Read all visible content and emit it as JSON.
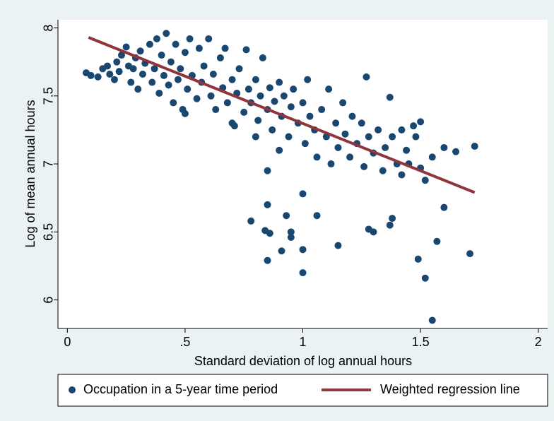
{
  "chart_data": {
    "type": "scatter",
    "xlabel": "Standard deviation of log annual hours",
    "ylabel": "Log of mean annual hours",
    "xlim": [
      -0.04,
      2.04
    ],
    "ylim": [
      5.79,
      8.06
    ],
    "xticks": [
      0,
      {
        "value": 0.5,
        "label": ".5"
      },
      1,
      1.5,
      2
    ],
    "yticks": [
      6,
      6.5,
      7,
      7.5,
      8
    ],
    "series": [
      {
        "name": "Occupation in a 5-year time period",
        "color": "#1a476f",
        "x": [
          0.08,
          0.1,
          0.13,
          0.15,
          0.17,
          0.18,
          0.2,
          0.21,
          0.22,
          0.23,
          0.25,
          0.26,
          0.27,
          0.28,
          0.29,
          0.3,
          0.31,
          0.32,
          0.33,
          0.35,
          0.36,
          0.37,
          0.38,
          0.39,
          0.4,
          0.41,
          0.42,
          0.43,
          0.44,
          0.45,
          0.46,
          0.47,
          0.48,
          0.49,
          0.5,
          0.51,
          0.52,
          0.53,
          0.55,
          0.56,
          0.57,
          0.58,
          0.6,
          0.61,
          0.62,
          0.63,
          0.65,
          0.66,
          0.67,
          0.68,
          0.7,
          0.71,
          0.72,
          0.73,
          0.75,
          0.76,
          0.77,
          0.78,
          0.8,
          0.81,
          0.82,
          0.83,
          0.85,
          0.86,
          0.87,
          0.88,
          0.9,
          0.91,
          0.92,
          0.94,
          0.95,
          0.96,
          0.98,
          1.0,
          1.01,
          1.02,
          1.03,
          1.05,
          1.06,
          1.08,
          1.1,
          1.11,
          1.12,
          1.14,
          1.15,
          1.17,
          1.18,
          1.2,
          1.21,
          1.23,
          1.25,
          1.26,
          1.28,
          1.3,
          1.32,
          1.34,
          1.35,
          1.38,
          1.4,
          1.42,
          1.44,
          0.85,
          0.84,
          0.86,
          0.78,
          0.85,
          0.91,
          0.93,
          0.95,
          0.95,
          1.0,
          1.0,
          1.0,
          1.06,
          1.15,
          1.28,
          1.3,
          1.37,
          1.38,
          1.49,
          1.52,
          1.55,
          1.57,
          1.6,
          1.71,
          1.73,
          1.65,
          1.6,
          1.52,
          1.55,
          1.5,
          1.48,
          1.5,
          1.47,
          1.42,
          1.45,
          1.27,
          1.37,
          0.9,
          0.8,
          0.7,
          0.5,
          0.85
        ],
        "values": [
          7.67,
          7.65,
          7.64,
          7.7,
          7.72,
          7.66,
          7.62,
          7.75,
          7.68,
          7.8,
          7.86,
          7.72,
          7.6,
          7.7,
          7.78,
          7.55,
          7.83,
          7.66,
          7.74,
          7.88,
          7.6,
          7.7,
          7.92,
          7.52,
          7.8,
          7.65,
          7.96,
          7.58,
          7.75,
          7.45,
          7.88,
          7.62,
          7.7,
          7.4,
          7.82,
          7.55,
          7.92,
          7.65,
          7.48,
          7.85,
          7.6,
          7.72,
          7.92,
          7.5,
          7.66,
          7.4,
          7.78,
          7.56,
          7.85,
          7.45,
          7.62,
          7.28,
          7.52,
          7.7,
          7.38,
          7.84,
          7.55,
          7.45,
          7.62,
          7.32,
          7.5,
          7.78,
          7.4,
          7.56,
          7.25,
          7.46,
          7.6,
          7.35,
          7.5,
          7.2,
          7.42,
          7.55,
          7.3,
          7.45,
          7.15,
          7.62,
          7.35,
          7.25,
          7.05,
          7.4,
          7.2,
          7.55,
          7.0,
          7.3,
          7.12,
          7.45,
          7.22,
          7.05,
          7.35,
          7.15,
          7.3,
          6.98,
          7.2,
          7.08,
          7.25,
          6.95,
          7.12,
          7.2,
          7.0,
          6.92,
          7.1,
          6.7,
          6.51,
          6.49,
          6.58,
          6.29,
          6.36,
          6.62,
          6.5,
          6.46,
          6.78,
          6.37,
          6.2,
          6.62,
          6.4,
          6.52,
          6.5,
          6.55,
          6.6,
          6.3,
          6.16,
          5.85,
          6.43,
          6.68,
          6.34,
          7.13,
          7.09,
          7.12,
          6.88,
          7.05,
          6.97,
          7.2,
          7.31,
          7.28,
          7.25,
          7.0,
          7.64,
          7.49,
          7.1,
          7.2,
          7.3,
          7.37,
          6.95
        ]
      },
      {
        "name": "Weighted regression line",
        "color": "#90353b",
        "type": "line",
        "x": [
          0.09,
          1.73
        ],
        "values": [
          7.93,
          6.79
        ]
      }
    ]
  }
}
